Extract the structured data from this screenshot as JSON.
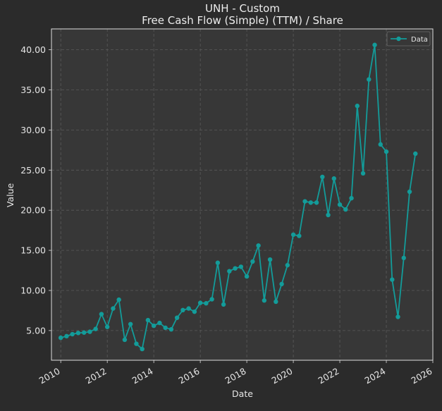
{
  "colors": {
    "figure_bg": "#2b2b2b",
    "plot_bg": "#373737",
    "series": "#139c9a",
    "grid": "#5a5a5a",
    "text": "#e6e6e6",
    "axes_edge": "#dcdcdc"
  },
  "chart_data": {
    "type": "line",
    "title": "UNH - Custom",
    "subtitle": "Free Cash Flow (Simple) (TTM) / Share",
    "xlabel": "Date",
    "ylabel": "Value",
    "xlim": [
      2009.6,
      2026.0
    ],
    "ylim": [
      1.3,
      42.6
    ],
    "x_ticks": [
      2010,
      2012,
      2014,
      2016,
      2018,
      2020,
      2022,
      2024,
      2026
    ],
    "x_tick_labels": [
      "2010",
      "2012",
      "2014",
      "2016",
      "2018",
      "2020",
      "2022",
      "2024",
      "2026"
    ],
    "y_ticks": [
      5,
      10,
      15,
      20,
      25,
      30,
      35,
      40
    ],
    "y_tick_labels": [
      "5.00",
      "10.00",
      "15.00",
      "20.00",
      "25.00",
      "30.00",
      "35.00",
      "40.00"
    ],
    "grid": true,
    "legend": {
      "position": "top-right",
      "entries": [
        "Data"
      ]
    },
    "series": [
      {
        "name": "Data",
        "marker": "circle",
        "points": [
          [
            2010.0,
            4.1
          ],
          [
            2010.25,
            4.3
          ],
          [
            2010.5,
            4.55
          ],
          [
            2010.75,
            4.7
          ],
          [
            2011.0,
            4.75
          ],
          [
            2011.25,
            4.85
          ],
          [
            2011.5,
            5.2
          ],
          [
            2011.75,
            7.05
          ],
          [
            2012.0,
            5.45
          ],
          [
            2012.25,
            7.75
          ],
          [
            2012.5,
            8.85
          ],
          [
            2012.75,
            3.85
          ],
          [
            2013.0,
            5.8
          ],
          [
            2013.25,
            3.35
          ],
          [
            2013.5,
            2.7
          ],
          [
            2013.75,
            6.3
          ],
          [
            2014.0,
            5.6
          ],
          [
            2014.25,
            5.95
          ],
          [
            2014.5,
            5.35
          ],
          [
            2014.75,
            5.15
          ],
          [
            2015.0,
            6.6
          ],
          [
            2015.25,
            7.55
          ],
          [
            2015.5,
            7.75
          ],
          [
            2015.75,
            7.35
          ],
          [
            2016.0,
            8.45
          ],
          [
            2016.25,
            8.4
          ],
          [
            2016.5,
            8.9
          ],
          [
            2016.75,
            13.45
          ],
          [
            2017.0,
            8.25
          ],
          [
            2017.25,
            12.4
          ],
          [
            2017.5,
            12.75
          ],
          [
            2017.75,
            12.95
          ],
          [
            2018.0,
            11.75
          ],
          [
            2018.25,
            13.6
          ],
          [
            2018.5,
            15.6
          ],
          [
            2018.75,
            8.75
          ],
          [
            2019.0,
            13.85
          ],
          [
            2019.25,
            8.6
          ],
          [
            2019.5,
            10.8
          ],
          [
            2019.75,
            13.15
          ],
          [
            2020.0,
            16.95
          ],
          [
            2020.25,
            16.8
          ],
          [
            2020.5,
            21.1
          ],
          [
            2020.75,
            20.95
          ],
          [
            2021.0,
            20.95
          ],
          [
            2021.25,
            24.15
          ],
          [
            2021.5,
            19.4
          ],
          [
            2021.75,
            23.95
          ],
          [
            2022.0,
            20.7
          ],
          [
            2022.25,
            20.1
          ],
          [
            2022.5,
            21.5
          ],
          [
            2022.75,
            33.0
          ],
          [
            2023.0,
            24.6
          ],
          [
            2023.25,
            36.3
          ],
          [
            2023.5,
            40.6
          ],
          [
            2023.75,
            28.2
          ],
          [
            2024.0,
            27.3
          ],
          [
            2024.25,
            11.35
          ],
          [
            2024.5,
            6.7
          ],
          [
            2024.75,
            14.05
          ],
          [
            2025.0,
            22.3
          ],
          [
            2025.25,
            27.05
          ]
        ]
      }
    ]
  }
}
